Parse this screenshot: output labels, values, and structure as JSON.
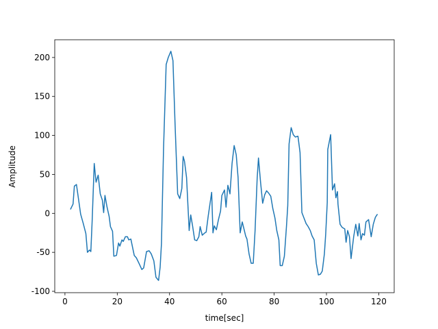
{
  "chart_data": {
    "type": "line",
    "xlabel": "time[sec]",
    "ylabel": "Amplitude",
    "color": "#1f77b4",
    "x": [
      2.1,
      3.1,
      3.6,
      4.4,
      5.2,
      6,
      7,
      8,
      8.6,
      9.4,
      9.9,
      10.4,
      11.2,
      11.9,
      12.7,
      13.5,
      14.3,
      14.8,
      15.3,
      16.1,
      16.9,
      17.4,
      18.2,
      18.7,
      19.7,
      20.5,
      21,
      21.8,
      22.3,
      23.1,
      23.9,
      24.4,
      25.2,
      26.5,
      27.3,
      28.3,
      29.4,
      30.1,
      31.2,
      32.2,
      33,
      34,
      34.8,
      35.8,
      36.4,
      36.9,
      37.7,
      38.2,
      38.7,
      39.5,
      40.5,
      41.3,
      42.1,
      43.1,
      43.9,
      44.7,
      45.2,
      45.7,
      46.5,
      47.5,
      48.1,
      48.8,
      49.6,
      50.4,
      51.2,
      51.7,
      52.5,
      53.5,
      54,
      54.8,
      56.1,
      56.6,
      57.1,
      57.9,
      58.7,
      59.5,
      60,
      61,
      61.6,
      62.3,
      63.1,
      63.9,
      64.7,
      65.5,
      66.2,
      67,
      67.8,
      68.6,
      69.1,
      69.6,
      70.4,
      71.2,
      72,
      72.7,
      73.5,
      74,
      74.8,
      75.6,
      76.4,
      77.1,
      77.9,
      78.7,
      79.5,
      80.3,
      81,
      81.8,
      82.3,
      83.1,
      83.9,
      84.7,
      85.2,
      85.7,
      86.5,
      87.3,
      88.1,
      89.1,
      89.9,
      90.6,
      91.4,
      92.2,
      93,
      93.8,
      94.5,
      95.3,
      96.1,
      96.9,
      97.7,
      98.4,
      99.2,
      99.7,
      100.3,
      100.5,
      101.6,
      102.3,
      103.1,
      103.6,
      104.2,
      104.4,
      105.2,
      106,
      107,
      107.5,
      108.1,
      108.8,
      109.4,
      110.4,
      111.2,
      112,
      112.5,
      113.2,
      113.8,
      114.5,
      115.1,
      116.1,
      117.1,
      117.9,
      118.7,
      119.5
    ],
    "values": [
      5,
      12,
      35,
      37,
      18,
      -1,
      -13,
      -26,
      -50,
      -47,
      -49,
      -10,
      64,
      40,
      49,
      25,
      17,
      1,
      23,
      8,
      -4,
      -17,
      -23,
      -55,
      -54,
      -38,
      -42,
      -34,
      -36,
      -30,
      -30,
      -34,
      -33,
      -54,
      -57,
      -64,
      -72,
      -70,
      -49,
      -48,
      -52,
      -61,
      -82,
      -86,
      -69,
      -39,
      83,
      137,
      191,
      200,
      208,
      196,
      115,
      25,
      19,
      32,
      73,
      67,
      46,
      -22,
      -2,
      -16,
      -34,
      -35,
      -30,
      -17,
      -28,
      -25,
      -24,
      -3,
      27,
      -25,
      -16,
      -21,
      -8,
      3,
      23,
      30,
      8,
      36,
      25,
      64,
      87,
      75,
      46,
      -25,
      -11,
      -22,
      -29,
      -33,
      -52,
      -64,
      -64,
      -22,
      45,
      71,
      40,
      13,
      24,
      29,
      26,
      22,
      6,
      -6,
      -22,
      -34,
      -67,
      -67,
      -55,
      -17,
      10,
      89,
      110,
      101,
      98,
      99,
      78,
      1,
      -6,
      -13,
      -17,
      -22,
      -29,
      -34,
      -64,
      -79,
      -78,
      -74,
      -52,
      -27,
      14,
      82,
      101,
      30,
      38,
      20,
      28,
      12,
      -14,
      -18,
      -20,
      -37,
      -22,
      -30,
      -58,
      -30,
      -14,
      -29,
      -13,
      -34,
      -26,
      -28,
      -11,
      -8,
      -30,
      -14,
      -5,
      -1
    ],
    "xlim": [
      -3.9,
      125.9
    ],
    "ylim": [
      -101.75,
      222.75
    ],
    "xticks": [
      0,
      20,
      40,
      60,
      80,
      100,
      120
    ],
    "yticks": [
      -100,
      -50,
      0,
      50,
      100,
      150,
      200
    ]
  }
}
